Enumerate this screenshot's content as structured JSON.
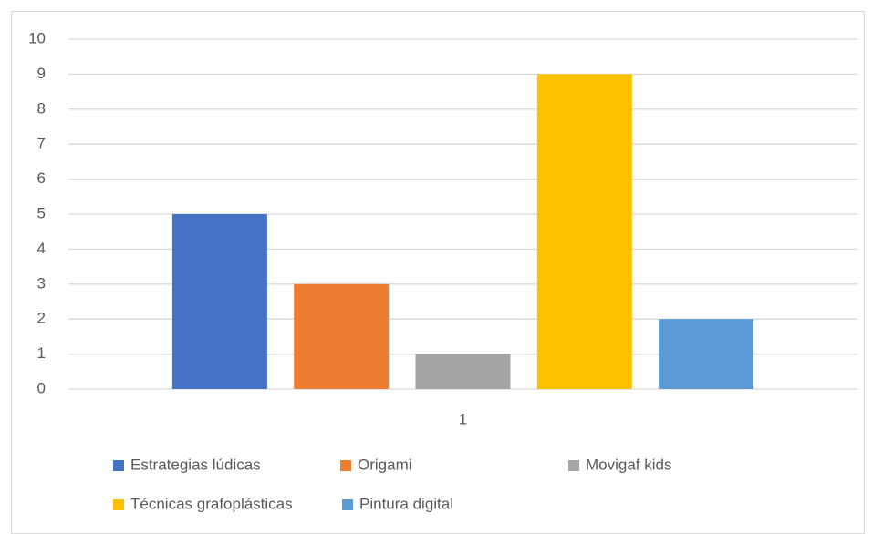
{
  "chart_data": {
    "type": "bar",
    "categories": [
      "1"
    ],
    "series": [
      {
        "name": "Estrategias lúdicas",
        "color": "#4472c4",
        "values": [
          5
        ]
      },
      {
        "name": "Origami",
        "color": "#ed7d31",
        "values": [
          3
        ]
      },
      {
        "name": "Movigaf kids",
        "color": "#a5a5a5",
        "values": [
          1
        ]
      },
      {
        "name": "Técnicas grafoplásticas",
        "color": "#ffc000",
        "values": [
          9
        ]
      },
      {
        "name": "Pintura digital",
        "color": "#5b9bd5",
        "values": [
          2
        ]
      }
    ],
    "ylim": [
      0,
      10
    ],
    "yticks": [
      0,
      1,
      2,
      3,
      4,
      5,
      6,
      7,
      8,
      9,
      10
    ],
    "grid": true,
    "legend": "bottom"
  }
}
